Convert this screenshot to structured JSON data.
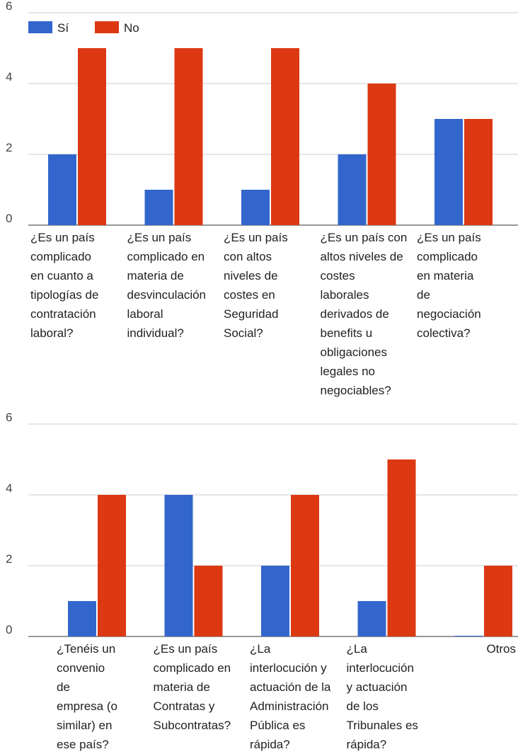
{
  "chart_data": [
    {
      "type": "bar",
      "categories": [
        [
          "¿Es un país",
          "complicado",
          "en cuanto a",
          "tipologías de",
          "contratación",
          "laboral?"
        ],
        [
          "¿Es un país",
          "complicado en",
          "materia de",
          "desvinculación",
          "laboral",
          "individual?"
        ],
        [
          "¿Es un país",
          "con altos",
          "niveles de",
          "costes en",
          "Seguridad",
          "Social?"
        ],
        [
          "¿Es un país con",
          "altos niveles de",
          "costes",
          "laborales",
          "derivados de",
          "benefits u",
          "obligaciones",
          "legales no",
          "negociables?"
        ],
        [
          "¿Es un país",
          "complicado",
          "en materia",
          "de",
          "negociación",
          "colectiva?"
        ]
      ],
      "series": [
        {
          "name": "Sí",
          "values": [
            2,
            1,
            1,
            2,
            3
          ]
        },
        {
          "name": "No",
          "values": [
            5,
            5,
            5,
            4,
            3
          ]
        }
      ],
      "yticks": [
        "0",
        "2",
        "4",
        "6"
      ],
      "ylim": [
        0,
        6
      ],
      "legend": "top-left",
      "grid": true
    },
    {
      "type": "bar",
      "categories": [
        [
          "¿Tenéis un",
          "convenio",
          "de",
          "empresa (o",
          "similar) en",
          "ese país?"
        ],
        [
          "¿Es un país",
          "complicado en",
          "materia de",
          "Contratas y",
          "Subcontratas?"
        ],
        [
          "¿La",
          "interlocución y",
          "actuación de la",
          "Administración",
          "Pública es",
          "rápida?"
        ],
        [
          "¿La",
          "interlocución",
          "y actuación",
          "de los",
          "Tribunales es",
          "rápida?"
        ],
        [
          "Otros"
        ]
      ],
      "series": [
        {
          "name": "Sí",
          "values": [
            1,
            4,
            2,
            1,
            0
          ]
        },
        {
          "name": "No",
          "values": [
            4,
            2,
            4,
            5,
            2
          ]
        }
      ],
      "yticks": [
        "0",
        "2",
        "4",
        "6"
      ],
      "ylim": [
        0,
        6
      ],
      "legend": "none",
      "grid": true
    }
  ],
  "colors": {
    "si": "#3366cc",
    "no": "#dc3912",
    "grid": "#cccccc",
    "baseline": "#333333"
  }
}
